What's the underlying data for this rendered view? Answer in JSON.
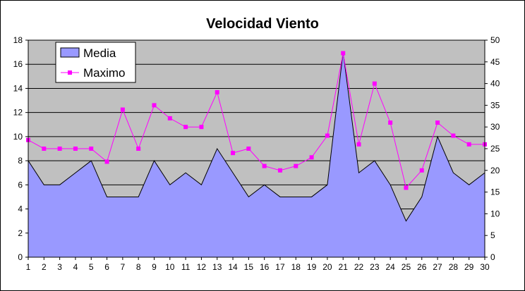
{
  "chart_data": {
    "type": "area+line",
    "title": "Velocidad Viento",
    "x": [
      1,
      2,
      3,
      4,
      5,
      6,
      7,
      8,
      9,
      10,
      11,
      12,
      13,
      14,
      15,
      16,
      17,
      18,
      19,
      20,
      21,
      22,
      23,
      24,
      25,
      26,
      27,
      28,
      29,
      30
    ],
    "series": [
      {
        "name": "Media",
        "type": "area",
        "axis": "left",
        "color": "#9999ff",
        "values": [
          8,
          6,
          6,
          7,
          8,
          5,
          5,
          5,
          8,
          6,
          7,
          6,
          9,
          7,
          5,
          6,
          5,
          5,
          5,
          6,
          17,
          7,
          8,
          6,
          3,
          5,
          10,
          7,
          6,
          7
        ]
      },
      {
        "name": "Maximo",
        "type": "line",
        "axis": "right",
        "color": "#ff00ff",
        "values": [
          27,
          25,
          25,
          25,
          25,
          22,
          34,
          25,
          35,
          32,
          30,
          30,
          38,
          24,
          25,
          21,
          20,
          21,
          23,
          28,
          47,
          26,
          40,
          31,
          16,
          20,
          31,
          28,
          26,
          26
        ]
      }
    ],
    "left_axis": {
      "ylim": [
        0,
        18
      ],
      "ticks": [
        "0",
        "2",
        "4",
        "6",
        "8",
        "10",
        "12",
        "14",
        "16",
        "18"
      ]
    },
    "right_axis": {
      "ylim": [
        0,
        50
      ],
      "ticks": [
        "0",
        "5",
        "10",
        "15",
        "20",
        "25",
        "30",
        "35",
        "40",
        "45",
        "50"
      ]
    },
    "x_ticks": [
      "1",
      "2",
      "3",
      "4",
      "5",
      "6",
      "7",
      "8",
      "9",
      "10",
      "11",
      "12",
      "13",
      "14",
      "15",
      "16",
      "17",
      "18",
      "19",
      "20",
      "21",
      "22",
      "23",
      "24",
      "25",
      "26",
      "27",
      "28",
      "29",
      "30"
    ],
    "grid": true,
    "legend_position": "top-left",
    "plot_background": "#c0c0c0"
  }
}
